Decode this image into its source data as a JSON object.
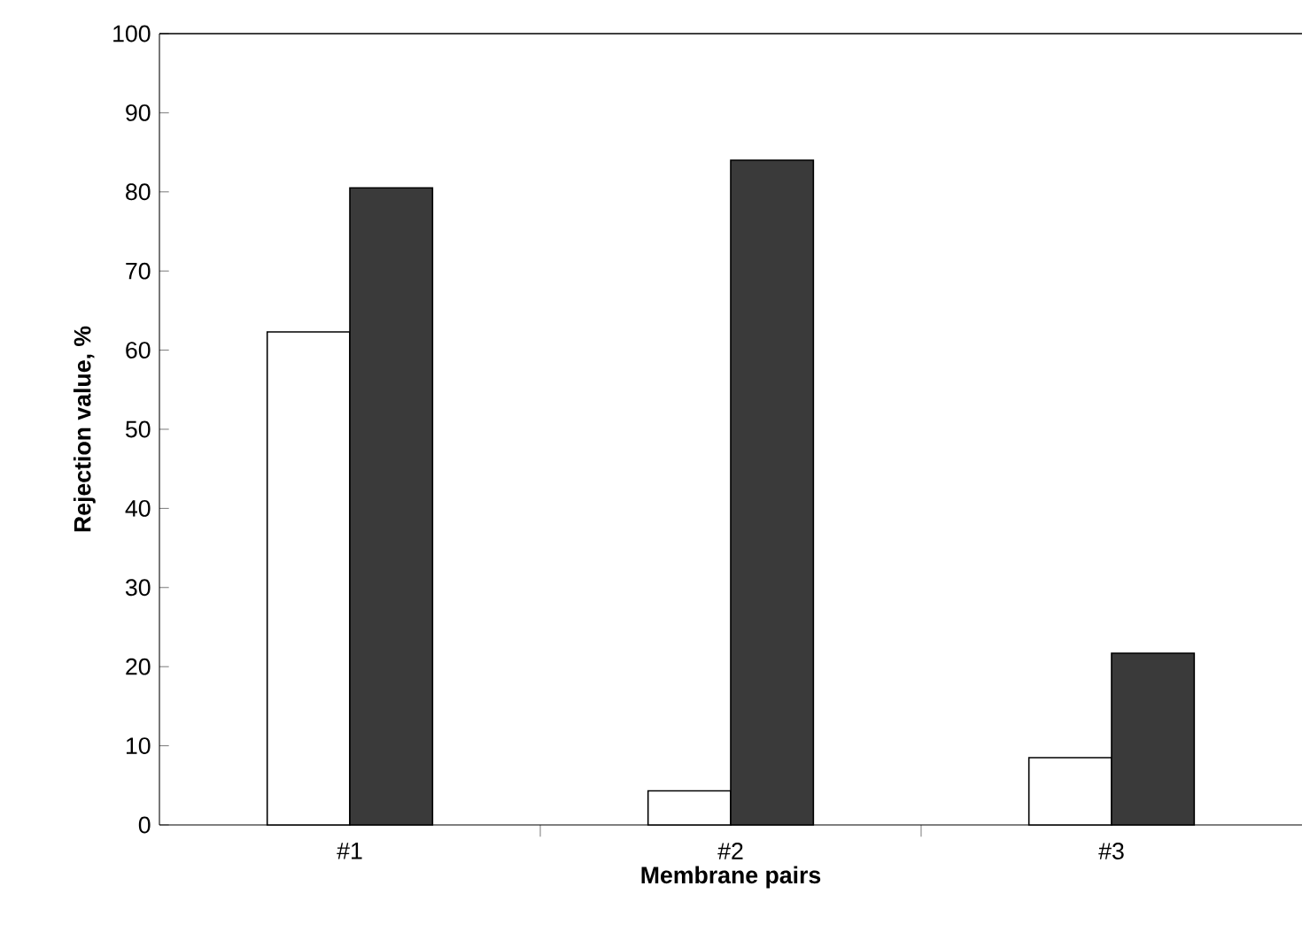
{
  "chart_data": {
    "type": "bar",
    "xlabel": "Membrane pairs",
    "ylabel": "Rejection value, %",
    "categories": [
      "#1",
      "#2",
      "#3"
    ],
    "series": [
      {
        "color": "#ffffff",
        "values": [
          62.3,
          4.3,
          8.5
        ]
      },
      {
        "color": "#3a3a3a",
        "values": [
          80.5,
          84,
          21.7
        ]
      }
    ],
    "ylim": [
      0,
      100
    ],
    "yticks": [
      0,
      10,
      20,
      30,
      40,
      50,
      60,
      70,
      80,
      90,
      100
    ],
    "grid": false
  }
}
